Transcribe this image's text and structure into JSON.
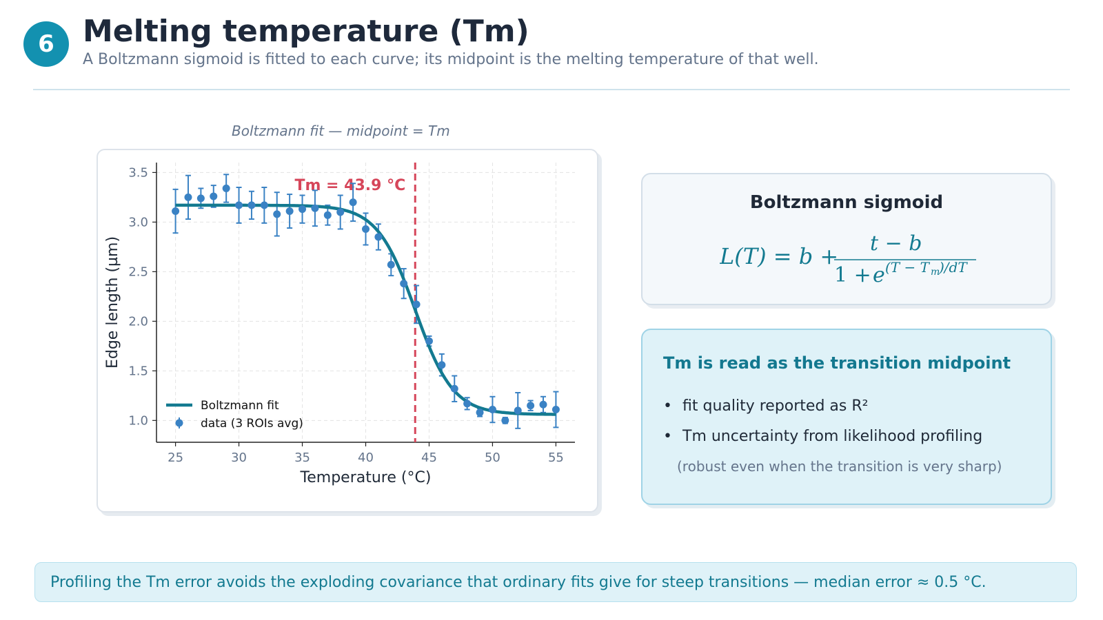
{
  "header": {
    "step_number": "6",
    "title": "Melting temperature (Tm)",
    "subtitle": "A Boltzmann sigmoid is fitted to each curve; its midpoint is the melting temperature of that well."
  },
  "chart_caption": "Boltzmann fit — midpoint = Tm",
  "chart_data": {
    "type": "scatter",
    "title": "",
    "xlabel": "Temperature (°C)",
    "ylabel": "Edge length (µm)",
    "xlim": [
      23.5,
      56.5
    ],
    "ylim": [
      0.78,
      3.6
    ],
    "xticks": [
      25,
      30,
      35,
      40,
      45,
      50,
      55
    ],
    "yticks": [
      1.0,
      1.5,
      2.0,
      2.5,
      3.0,
      3.5
    ],
    "ytick_labels": [
      "1.0",
      "1.5",
      "2.0",
      "2.5",
      "3.0",
      "3.5"
    ],
    "grid": true,
    "legend_position": "bottom-left",
    "series": [
      {
        "name": "data (3 ROIs avg)",
        "type": "errorbar",
        "color": "#3a82c4",
        "x": [
          25,
          26,
          27,
          28,
          29,
          30,
          31,
          32,
          33,
          34,
          35,
          36,
          37,
          38,
          39,
          40,
          41,
          42,
          43,
          44,
          45,
          46,
          47,
          48,
          49,
          50,
          51,
          52,
          53,
          54,
          55
        ],
        "y": [
          3.11,
          3.25,
          3.24,
          3.26,
          3.34,
          3.17,
          3.17,
          3.17,
          3.08,
          3.11,
          3.13,
          3.14,
          3.07,
          3.1,
          3.2,
          2.93,
          2.85,
          2.57,
          2.38,
          2.17,
          1.8,
          1.56,
          1.32,
          1.17,
          1.08,
          1.11,
          1.0,
          1.1,
          1.15,
          1.16,
          1.11
        ],
        "err": [
          0.22,
          0.22,
          0.1,
          0.11,
          0.14,
          0.18,
          0.14,
          0.18,
          0.22,
          0.17,
          0.14,
          0.18,
          0.1,
          0.17,
          0.19,
          0.16,
          0.13,
          0.11,
          0.15,
          0.19,
          0.05,
          0.11,
          0.13,
          0.06,
          0.04,
          0.13,
          0.03,
          0.18,
          0.05,
          0.08,
          0.18
        ]
      },
      {
        "name": "Boltzmann fit",
        "type": "line",
        "color": "#137a90",
        "model": "boltzmann",
        "top": 3.17,
        "bottom": 1.06,
        "tm": 43.9,
        "dT": 1.5
      }
    ],
    "annotations": [
      {
        "type": "vline",
        "x": 43.9,
        "color": "#d6465a",
        "style": "dashed",
        "label": "Tm = 43.9 °C"
      }
    ]
  },
  "formula_card": {
    "title": "Boltzmann sigmoid"
  },
  "info_card": {
    "title": "Tm is read as the transition midpoint",
    "bullets": [
      "fit quality reported as R²",
      "Tm uncertainty from likelihood profiling"
    ],
    "note": "(robust even when the transition is very sharp)"
  },
  "footer": {
    "text": "Profiling the Tm error avoids the exploding covariance that ordinary fits give for steep transitions — median error ≈ 0.5 °C."
  },
  "colors": {
    "accent": "#1391b0",
    "fit_line": "#137a90",
    "data_points": "#3a82c4",
    "tm_marker": "#d6465a"
  }
}
